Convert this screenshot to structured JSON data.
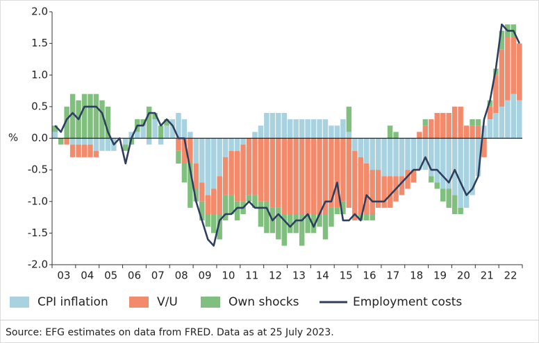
{
  "chart_data": {
    "type": "bar",
    "ylabel": "%",
    "source": "Source: EFG estimates on data from FRED. Data as at 25 July 2023.",
    "ylim": [
      -2.0,
      2.0
    ],
    "yticks": [
      {
        "value": 2.0,
        "label": "2.0"
      },
      {
        "value": 1.5,
        "label": "1.5"
      },
      {
        "value": 1.0,
        "label": "1.0"
      },
      {
        "value": 0.5,
        "label": "0.5"
      },
      {
        "value": 0,
        "label": "0.0"
      },
      {
        "value": -0.5,
        "label": "-0.5"
      },
      {
        "value": -1.0,
        "label": "-1.0"
      },
      {
        "value": -1.5,
        "label": "-1.5"
      },
      {
        "value": -2.0,
        "label": "-2.0"
      }
    ],
    "categories": [
      null,
      null,
      "03",
      null,
      null,
      null,
      "04",
      null,
      null,
      null,
      "05",
      null,
      null,
      null,
      "06",
      null,
      null,
      null,
      "07",
      null,
      null,
      null,
      "08",
      null,
      null,
      null,
      "09",
      null,
      null,
      null,
      "10",
      null,
      null,
      null,
      "11",
      null,
      null,
      null,
      "12",
      null,
      null,
      null,
      "13",
      null,
      null,
      null,
      "14",
      null,
      null,
      null,
      "15",
      null,
      null,
      null,
      "16",
      null,
      null,
      null,
      "17",
      null,
      null,
      null,
      "18",
      null,
      null,
      null,
      "19",
      null,
      null,
      null,
      "20",
      null,
      null,
      null,
      "21",
      null,
      null,
      null,
      "22",
      null
    ],
    "series": [
      {
        "name": "CPI inflation",
        "color": "#a8d2df",
        "values": [
          0.1,
          0,
          0,
          -0.1,
          -0.1,
          -0.1,
          -0.1,
          -0.2,
          -0.2,
          -0.2,
          -0.2,
          0,
          -0.1,
          0.1,
          0.1,
          0.2,
          -0.1,
          0.3,
          -0.1,
          0.2,
          0.3,
          0.4,
          0.3,
          0.1,
          -0.4,
          -0.7,
          -0.9,
          -0.8,
          -0.6,
          -0.3,
          -0.2,
          -0.2,
          -0.1,
          0,
          0.1,
          0.2,
          0.4,
          0.4,
          0.4,
          0.4,
          0.3,
          0.3,
          0.3,
          0.3,
          0.3,
          0.3,
          0.3,
          0.2,
          0.2,
          0.3,
          0.1,
          -0.2,
          -0.3,
          -0.4,
          -0.5,
          -0.5,
          -0.6,
          -0.6,
          -0.6,
          -0.6,
          -0.5,
          -0.5,
          -0.5,
          -0.5,
          -0.6,
          -0.7,
          -0.8,
          -0.8,
          -0.9,
          -1.1,
          -1.1,
          -0.9,
          -0.6,
          0.2,
          0.3,
          0.4,
          0.5,
          0.6,
          0.7,
          0.6
        ]
      },
      {
        "name": "V/U",
        "color": "#f28b6b",
        "values": [
          0,
          0,
          -0.1,
          -0.2,
          -0.2,
          -0.2,
          -0.2,
          -0.1,
          0,
          0,
          0,
          0,
          0,
          0,
          0,
          0,
          0,
          0,
          0,
          0,
          0,
          -0.2,
          -0.4,
          -0.4,
          -0.4,
          -0.3,
          -0.3,
          -0.4,
          -0.6,
          -0.6,
          -0.7,
          -0.8,
          -0.9,
          -0.9,
          -0.9,
          -1.0,
          -1.0,
          -1.1,
          -1.1,
          -1.2,
          -1.2,
          -1.2,
          -1.2,
          -1.2,
          -1.2,
          -1.2,
          -1.2,
          -1.1,
          -1.1,
          -1.0,
          -1.1,
          -1.1,
          -0.9,
          -0.8,
          -0.7,
          -0.6,
          -0.5,
          -0.5,
          -0.4,
          -0.3,
          -0.3,
          -0.2,
          0.1,
          0.2,
          0.3,
          0.4,
          0.4,
          0.4,
          0.5,
          0.5,
          0.2,
          0.2,
          0.2,
          -0.3,
          0.2,
          0.6,
          0.9,
          1.0,
          0.9,
          0.9
        ]
      },
      {
        "name": "Own shocks",
        "color": "#80bf7e",
        "values": [
          0.1,
          -0.1,
          0.5,
          0.7,
          0.6,
          0.7,
          0.7,
          0.7,
          0.6,
          0.5,
          0,
          0,
          -0.1,
          -0.1,
          0.2,
          0.1,
          0.5,
          0.1,
          0.2,
          0.1,
          0,
          -0.2,
          -0.3,
          -0.7,
          -0.2,
          -0.3,
          -0.2,
          -0.3,
          -0.4,
          -0.4,
          -0.3,
          -0.3,
          -0.2,
          -0.1,
          -0.2,
          -0.4,
          -0.5,
          -0.4,
          -0.5,
          -0.5,
          -0.3,
          -0.3,
          -0.5,
          -0.3,
          -0.3,
          -0.2,
          -0.4,
          -0.3,
          -0.1,
          -0.2,
          0.4,
          0,
          -0.1,
          -0.1,
          -0.1,
          0,
          0,
          0.2,
          0.1,
          0,
          0,
          0,
          0,
          0.1,
          -0.1,
          -0.1,
          -0.2,
          -0.3,
          -0.3,
          -0.1,
          0,
          0.1,
          0.1,
          0,
          0.1,
          0.1,
          0.3,
          0.2,
          0.2,
          0
        ]
      },
      {
        "name": "Employment costs",
        "color": "#2d3e5e",
        "type": "line",
        "values": [
          0.2,
          0.1,
          0.3,
          0.4,
          0.3,
          0.5,
          0.5,
          0.5,
          0.4,
          0.1,
          -0.1,
          0,
          -0.4,
          0,
          0.2,
          0.2,
          0.4,
          0.4,
          0.2,
          0.3,
          0.2,
          0,
          0,
          -0.5,
          -1.0,
          -1.3,
          -1.6,
          -1.7,
          -1.3,
          -1.2,
          -1.2,
          -1.1,
          -1.1,
          -1.0,
          -1.1,
          -1.1,
          -1.1,
          -1.3,
          -1.2,
          -1.3,
          -1.4,
          -1.3,
          -1.3,
          -1.2,
          -1.4,
          -1.2,
          -1.0,
          -1.0,
          -0.7,
          -1.3,
          -1.3,
          -1.2,
          -1.3,
          -0.9,
          -1.0,
          -1.0,
          -1.0,
          -0.9,
          -0.8,
          -0.7,
          -0.6,
          -0.5,
          -0.5,
          -0.3,
          -0.5,
          -0.5,
          -0.6,
          -0.7,
          -0.5,
          -0.7,
          -0.9,
          -0.8,
          -0.6,
          0.3,
          0.6,
          1.1,
          1.8,
          1.7,
          1.7,
          1.5
        ]
      }
    ]
  }
}
